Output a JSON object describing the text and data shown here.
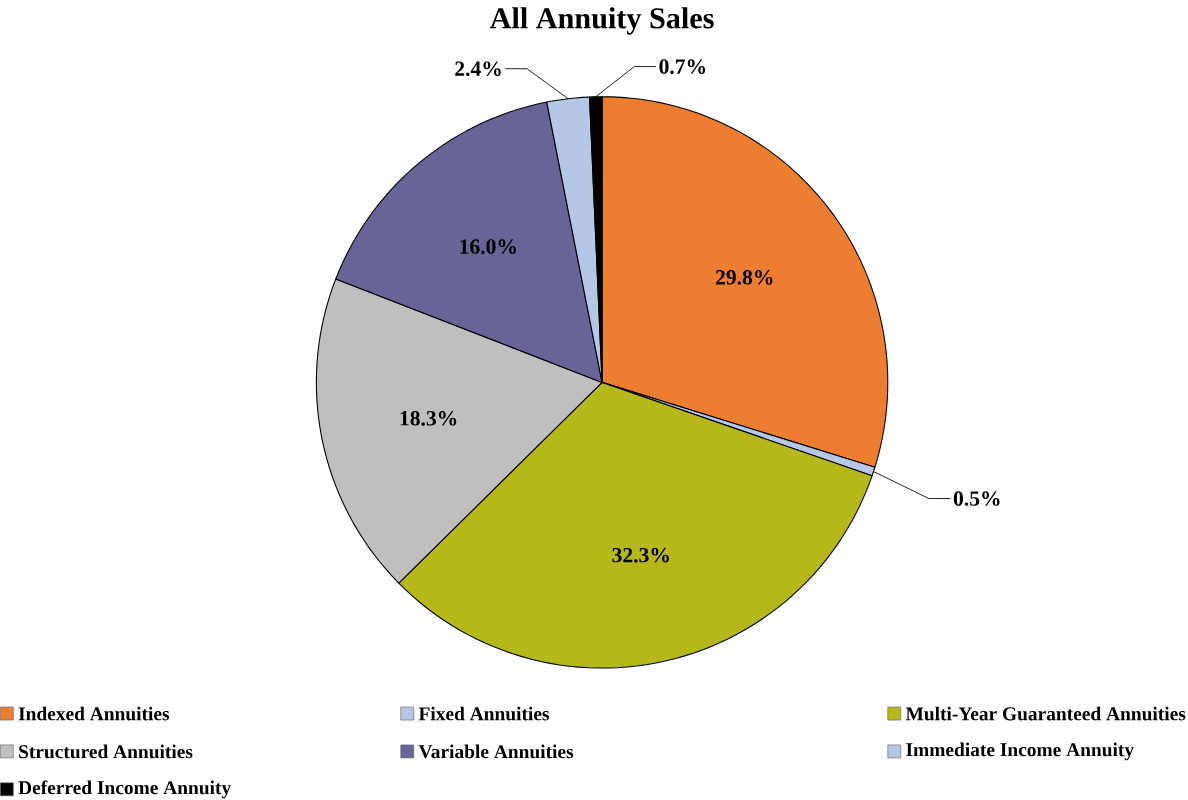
{
  "chart_data": {
    "type": "pie",
    "title": "All Annuity Sales",
    "categories": [
      "Indexed Annuities",
      "Fixed Annuities",
      "Multi-Year Guaranteed Annuities",
      "Structured Annuities",
      "Variable Annuities",
      "Immediate Income Annuity",
      "Deferred Income Annuity"
    ],
    "values": [
      29.8,
      0.5,
      32.3,
      18.3,
      16.0,
      2.4,
      0.7
    ],
    "value_labels": [
      "29.8%",
      "0.5%",
      "32.3%",
      "18.3%",
      "16.0%",
      "2.4%",
      "0.7%"
    ],
    "colors": [
      "#ed7d31",
      "#b4c7e7",
      "#b5b71b",
      "#bfbfbf",
      "#686497",
      "#b4c7e7",
      "#000000"
    ],
    "legend": "bottom"
  }
}
